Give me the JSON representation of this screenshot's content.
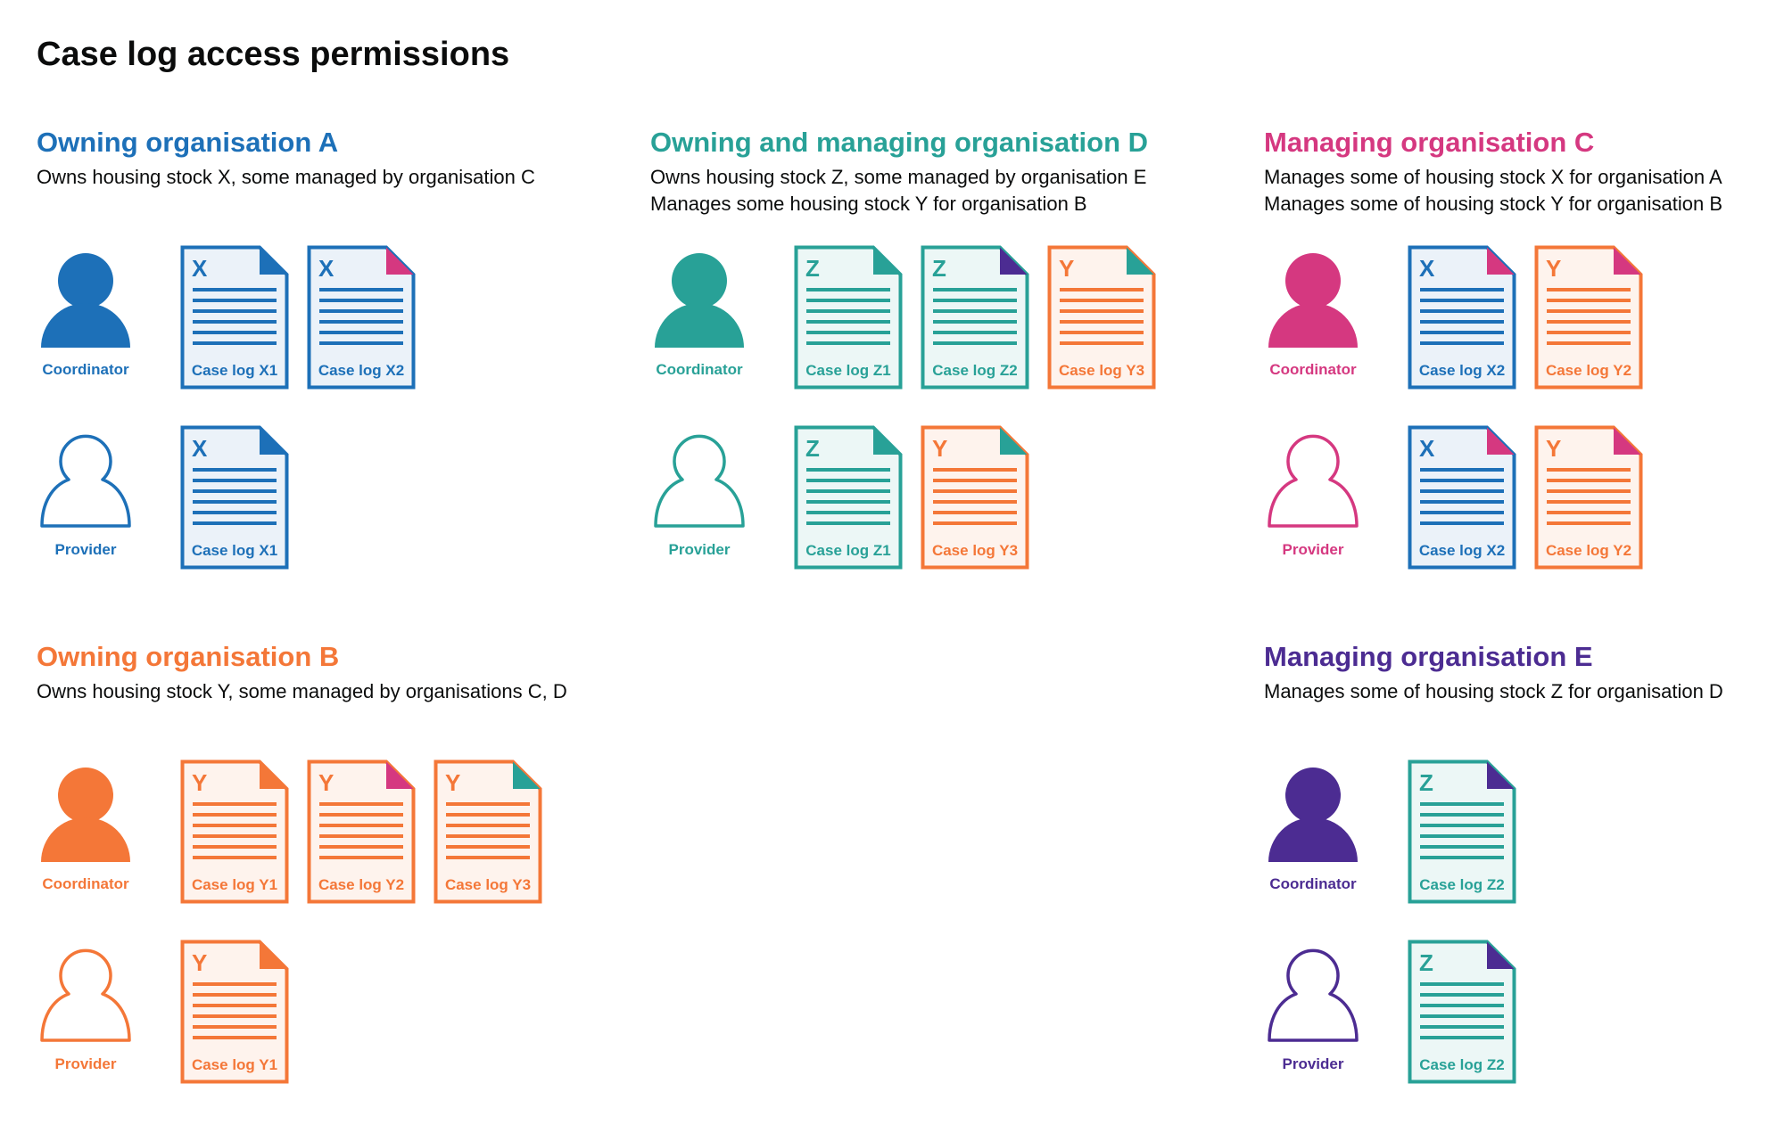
{
  "title": "Case log access permissions",
  "colors": {
    "blue": "#1d70b8",
    "teal": "#28a197",
    "pink": "#d53880",
    "orange": "#f47738",
    "purple": "#4c2c92"
  },
  "orgs": [
    {
      "name": "Owning organisation A",
      "color": "#1d70b8",
      "description": [
        "Owns housing stock X, some managed by organisation C"
      ],
      "roles": [
        {
          "role": "Coordinator",
          "icon": "person-filled-icon",
          "docs": [
            {
              "letter": "X",
              "label": "Case log X1",
              "color": "#1d70b8",
              "fold": "#1d70b8"
            },
            {
              "letter": "X",
              "label": "Case log X2",
              "color": "#1d70b8",
              "fold": "#d53880"
            }
          ]
        },
        {
          "role": "Provider",
          "icon": "person-outline-icon",
          "docs": [
            {
              "letter": "X",
              "label": "Case log X1",
              "color": "#1d70b8",
              "fold": "#1d70b8"
            }
          ]
        }
      ]
    },
    {
      "name": "Owning and managing organisation D",
      "color": "#28a197",
      "description": [
        "Owns housing stock Z, some managed by organisation E",
        "Manages some housing stock Y for organisation B"
      ],
      "roles": [
        {
          "role": "Coordinator",
          "icon": "person-filled-icon",
          "docs": [
            {
              "letter": "Z",
              "label": "Case log Z1",
              "color": "#28a197",
              "fold": "#28a197"
            },
            {
              "letter": "Z",
              "label": "Case log Z2",
              "color": "#28a197",
              "fold": "#4c2c92"
            },
            {
              "letter": "Y",
              "label": "Case log Y3",
              "color": "#f47738",
              "fold": "#28a197"
            }
          ]
        },
        {
          "role": "Provider",
          "icon": "person-outline-icon",
          "docs": [
            {
              "letter": "Z",
              "label": "Case log Z1",
              "color": "#28a197",
              "fold": "#28a197"
            },
            {
              "letter": "Y",
              "label": "Case log Y3",
              "color": "#f47738",
              "fold": "#28a197"
            }
          ]
        }
      ]
    },
    {
      "name": "Managing organisation C",
      "color": "#d53880",
      "description": [
        "Manages some of housing stock X for organisation A",
        "Manages some of housing stock Y for organisation B"
      ],
      "roles": [
        {
          "role": "Coordinator",
          "icon": "person-filled-icon",
          "docs": [
            {
              "letter": "X",
              "label": "Case log X2",
              "color": "#1d70b8",
              "fold": "#d53880"
            },
            {
              "letter": "Y",
              "label": "Case log Y2",
              "color": "#f47738",
              "fold": "#d53880"
            }
          ]
        },
        {
          "role": "Provider",
          "icon": "person-outline-icon",
          "docs": [
            {
              "letter": "X",
              "label": "Case log X2",
              "color": "#1d70b8",
              "fold": "#d53880"
            },
            {
              "letter": "Y",
              "label": "Case log Y2",
              "color": "#f47738",
              "fold": "#d53880"
            }
          ]
        }
      ]
    },
    {
      "name": "Owning organisation B",
      "color": "#f47738",
      "description": [
        "Owns housing stock Y, some managed by organisations C, D"
      ],
      "roles": [
        {
          "role": "Coordinator",
          "icon": "person-filled-icon",
          "docs": [
            {
              "letter": "Y",
              "label": "Case log Y1",
              "color": "#f47738",
              "fold": "#f47738"
            },
            {
              "letter": "Y",
              "label": "Case log Y2",
              "color": "#f47738",
              "fold": "#d53880"
            },
            {
              "letter": "Y",
              "label": "Case log Y3",
              "color": "#f47738",
              "fold": "#28a197"
            }
          ]
        },
        {
          "role": "Provider",
          "icon": "person-outline-icon",
          "docs": [
            {
              "letter": "Y",
              "label": "Case log Y1",
              "color": "#f47738",
              "fold": "#f47738"
            }
          ]
        }
      ]
    },
    {
      "name": "Managing organisation E",
      "color": "#4c2c92",
      "description": [
        "Manages some of housing stock Z for organisation D"
      ],
      "roles": [
        {
          "role": "Coordinator",
          "icon": "person-filled-icon",
          "docs": [
            {
              "letter": "Z",
              "label": "Case log Z2",
              "color": "#28a197",
              "fold": "#4c2c92"
            }
          ]
        },
        {
          "role": "Provider",
          "icon": "person-outline-icon",
          "docs": [
            {
              "letter": "Z",
              "label": "Case log Z2",
              "color": "#28a197",
              "fold": "#4c2c92"
            }
          ]
        }
      ]
    }
  ]
}
